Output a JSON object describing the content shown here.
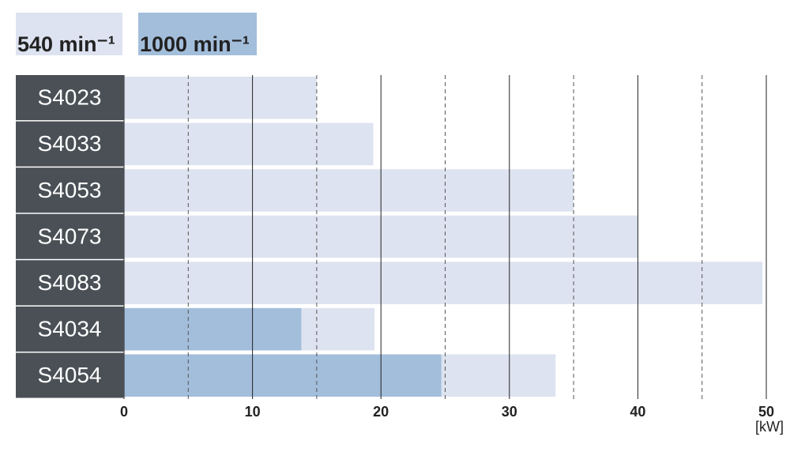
{
  "chart_data": {
    "type": "bar",
    "orientation": "horizontal",
    "categories": [
      "S4023",
      "S4033",
      "S4053",
      "S4073",
      "S4083",
      "S4034",
      "S4054"
    ],
    "series": [
      {
        "name": "540 min⁻¹",
        "color": "#dde3f0",
        "values": [
          15,
          19.4,
          35,
          40,
          49.7,
          19.5,
          33.6
        ]
      },
      {
        "name": "1000 min⁻¹",
        "color": "#a3bedb",
        "values": [
          null,
          null,
          null,
          null,
          null,
          13.8,
          24.7
        ]
      }
    ],
    "xlim": [
      0,
      50
    ],
    "xticks": [
      0,
      10,
      20,
      30,
      40,
      50
    ],
    "minor_xticks": [
      5,
      15,
      25,
      35,
      45
    ],
    "unit_label": "[kW]",
    "grid": true
  }
}
